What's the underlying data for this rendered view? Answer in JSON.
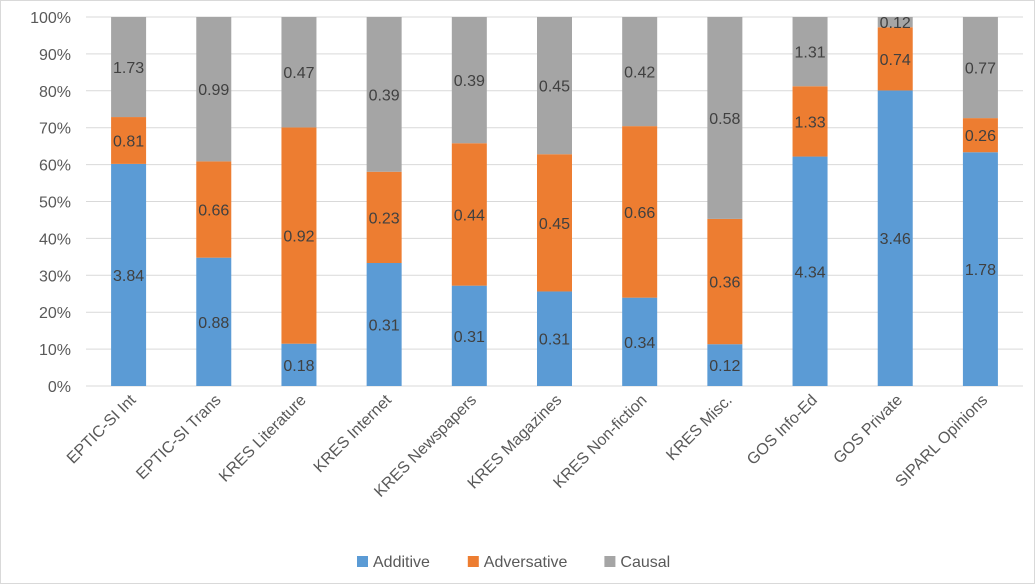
{
  "chart_data": {
    "type": "bar",
    "stacked": true,
    "normalized_percent": true,
    "categories": [
      "EPTIC-SI Int",
      "EPTIC-SI Trans",
      "KRES Literature",
      "KRES Internet",
      "KRES Newspapers",
      "KRES Magazines",
      "KRES Non-fiction",
      "KRES Misc.",
      "GOS Info-Ed",
      "GOS Private",
      "SIPARL Opinions"
    ],
    "series": [
      {
        "name": "Additive",
        "color": "#5b9bd5",
        "values": [
          3.84,
          0.88,
          0.18,
          0.31,
          0.31,
          0.31,
          0.34,
          0.12,
          4.34,
          3.46,
          1.78
        ]
      },
      {
        "name": "Adversative",
        "color": "#ed7d31",
        "values": [
          0.81,
          0.66,
          0.92,
          0.23,
          0.44,
          0.45,
          0.66,
          0.36,
          1.33,
          0.74,
          0.26
        ]
      },
      {
        "name": "Causal",
        "color": "#a5a5a5",
        "values": [
          1.73,
          0.99,
          0.47,
          0.39,
          0.39,
          0.45,
          0.42,
          0.58,
          1.31,
          0.12,
          0.77
        ]
      }
    ],
    "ylim": [
      0,
      100
    ],
    "yticks": [
      "0%",
      "10%",
      "20%",
      "30%",
      "40%",
      "50%",
      "60%",
      "70%",
      "80%",
      "90%",
      "100%"
    ],
    "grid": true,
    "legend_position": "bottom",
    "title": "",
    "xlabel": "",
    "ylabel": ""
  }
}
